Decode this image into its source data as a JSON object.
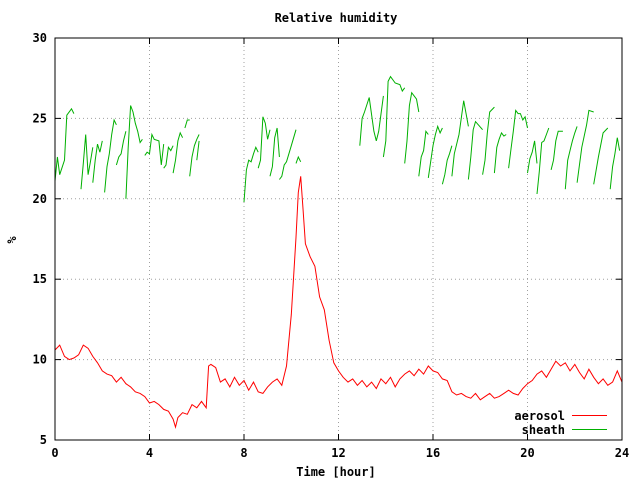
{
  "chart_data": {
    "type": "line",
    "title": "Relative humidity",
    "xlabel": "Time [hour]",
    "ylabel": "%",
    "xlim": [
      0,
      24
    ],
    "ylim": [
      5,
      30
    ],
    "xticks": [
      0,
      4,
      8,
      12,
      16,
      20,
      24
    ],
    "yticks": [
      5,
      10,
      15,
      20,
      25,
      30
    ],
    "grid": true,
    "legend_position": "bottom-right",
    "series": [
      {
        "name": "aerosol",
        "color": "#ff0000",
        "x": [
          0,
          0.2,
          0.4,
          0.6,
          0.8,
          1.0,
          1.2,
          1.4,
          1.6,
          1.8,
          2.0,
          2.2,
          2.4,
          2.6,
          2.8,
          3.0,
          3.2,
          3.4,
          3.6,
          3.8,
          4.0,
          4.2,
          4.4,
          4.6,
          4.8,
          5.0,
          5.1,
          5.2,
          5.4,
          5.6,
          5.8,
          6.0,
          6.2,
          6.4,
          6.5,
          6.6,
          6.8,
          7.0,
          7.2,
          7.4,
          7.6,
          7.8,
          8.0,
          8.2,
          8.4,
          8.6,
          8.8,
          9.0,
          9.2,
          9.4,
          9.6,
          9.8,
          10.0,
          10.2,
          10.3,
          10.4,
          10.5,
          10.6,
          10.8,
          11.0,
          11.2,
          11.4,
          11.6,
          11.8,
          12.0,
          12.2,
          12.4,
          12.6,
          12.8,
          13.0,
          13.2,
          13.4,
          13.6,
          13.8,
          14.0,
          14.2,
          14.4,
          14.6,
          14.8,
          15.0,
          15.2,
          15.4,
          15.6,
          15.8,
          16.0,
          16.2,
          16.4,
          16.6,
          16.8,
          17.0,
          17.2,
          17.4,
          17.6,
          17.8,
          18.0,
          18.2,
          18.4,
          18.6,
          18.8,
          19.0,
          19.2,
          19.4,
          19.6,
          19.8,
          20.0,
          20.2,
          20.4,
          20.6,
          20.8,
          21.0,
          21.2,
          21.4,
          21.6,
          21.8,
          22.0,
          22.2,
          22.4,
          22.6,
          22.8,
          23.0,
          23.2,
          23.4,
          23.6,
          23.8,
          24.0
        ],
        "y": [
          10.6,
          10.9,
          10.2,
          10.0,
          10.1,
          10.3,
          10.9,
          10.7,
          10.2,
          9.8,
          9.3,
          9.1,
          9.0,
          8.6,
          8.9,
          8.5,
          8.3,
          8.0,
          7.9,
          7.7,
          7.3,
          7.4,
          7.2,
          6.9,
          6.8,
          6.3,
          5.8,
          6.4,
          6.7,
          6.6,
          7.2,
          7.0,
          7.4,
          7.0,
          9.6,
          9.7,
          9.5,
          8.6,
          8.8,
          8.3,
          8.9,
          8.4,
          8.7,
          8.1,
          8.6,
          8.0,
          7.9,
          8.3,
          8.6,
          8.8,
          8.4,
          9.6,
          12.8,
          17.6,
          20.4,
          21.4,
          19.3,
          17.2,
          16.4,
          15.8,
          13.9,
          13.1,
          11.2,
          9.8,
          9.3,
          8.9,
          8.6,
          8.8,
          8.4,
          8.7,
          8.3,
          8.6,
          8.2,
          8.8,
          8.5,
          8.9,
          8.3,
          8.8,
          9.1,
          9.3,
          9.0,
          9.4,
          9.1,
          9.6,
          9.3,
          9.2,
          8.8,
          8.7,
          8.0,
          7.8,
          7.9,
          7.7,
          7.6,
          7.9,
          7.5,
          7.7,
          7.9,
          7.6,
          7.7,
          7.9,
          8.1,
          7.9,
          7.8,
          8.2,
          8.5,
          8.7,
          9.1,
          9.3,
          8.9,
          9.4,
          9.9,
          9.6,
          9.8,
          9.3,
          9.7,
          9.2,
          8.8,
          9.4,
          8.9,
          8.5,
          8.8,
          8.4,
          8.6,
          9.3,
          8.6
        ]
      },
      {
        "name": "sheath",
        "color": "#00b000",
        "segments": [
          {
            "x": [
              0.0,
              0.1,
              0.2,
              0.4,
              0.5,
              0.7,
              0.8
            ],
            "y": [
              21.1,
              22.6,
              21.5,
              22.4,
              25.2,
              25.6,
              25.3
            ]
          },
          {
            "x": [
              1.1,
              1.2,
              1.3,
              1.4,
              1.5,
              1.6
            ],
            "y": [
              20.6,
              22.2,
              24.0,
              21.5,
              22.3,
              23.2
            ]
          },
          {
            "x": [
              1.6,
              1.7,
              1.8,
              1.9,
              2.0
            ],
            "y": [
              21.0,
              22.4,
              23.4,
              22.9,
              23.6
            ]
          },
          {
            "x": [
              2.1,
              2.2,
              2.3,
              2.4,
              2.5,
              2.6
            ],
            "y": [
              20.4,
              22.0,
              22.8,
              24.0,
              24.9,
              24.6
            ]
          },
          {
            "x": [
              2.6,
              2.7,
              2.8,
              2.9,
              3.0
            ],
            "y": [
              22.1,
              22.6,
              22.8,
              23.6,
              24.2
            ]
          },
          {
            "x": [
              3.0,
              3.1,
              3.2,
              3.3,
              3.4,
              3.5,
              3.6,
              3.7
            ],
            "y": [
              20.0,
              23.2,
              25.8,
              25.4,
              24.7,
              24.2,
              23.5,
              23.7
            ]
          },
          {
            "x": [
              3.8,
              3.9,
              4.0,
              4.1,
              4.2,
              4.4,
              4.5,
              4.6
            ],
            "y": [
              22.7,
              22.9,
              22.8,
              24.0,
              23.7,
              23.6,
              22.1,
              23.4
            ]
          },
          {
            "x": [
              4.6,
              4.7,
              4.8,
              4.9,
              5.0
            ],
            "y": [
              21.9,
              22.1,
              23.2,
              23.0,
              23.3
            ]
          },
          {
            "x": [
              5.0,
              5.1,
              5.2,
              5.3,
              5.4
            ],
            "y": [
              21.6,
              22.4,
              23.6,
              24.1,
              23.8
            ]
          },
          {
            "x": [
              5.5,
              5.6,
              5.7
            ],
            "y": [
              24.4,
              24.9,
              24.9
            ]
          },
          {
            "x": [
              5.7,
              5.8,
              5.9,
              6.0,
              6.1
            ],
            "y": [
              21.4,
              22.6,
              23.3,
              23.7,
              24.0
            ]
          },
          {
            "x": [
              6.0,
              6.1
            ],
            "y": [
              22.4,
              23.6
            ]
          },
          {
            "x": [
              8.0,
              8.1,
              8.2,
              8.3,
              8.4,
              8.5,
              8.6
            ],
            "y": [
              19.8,
              21.8,
              22.4,
              22.3,
              22.8,
              23.2,
              22.9
            ]
          },
          {
            "x": [
              8.6,
              8.7,
              8.8,
              8.9,
              9.0,
              9.1
            ],
            "y": [
              21.9,
              22.4,
              25.1,
              24.7,
              23.7,
              24.3
            ]
          },
          {
            "x": [
              9.1,
              9.2,
              9.3,
              9.4,
              9.5
            ],
            "y": [
              21.4,
              22.0,
              23.8,
              24.4,
              22.6
            ]
          },
          {
            "x": [
              9.5,
              9.6,
              9.7,
              9.8,
              10.0,
              10.2
            ],
            "y": [
              21.2,
              21.4,
              22.1,
              22.3,
              23.3,
              24.3
            ]
          },
          {
            "x": [
              10.2,
              10.3,
              10.4
            ],
            "y": [
              22.2,
              22.6,
              22.3
            ]
          },
          {
            "x": [
              12.9,
              13.0,
              13.1,
              13.3,
              13.5,
              13.6,
              13.7,
              13.9
            ],
            "y": [
              23.3,
              25.0,
              25.4,
              26.3,
              24.2,
              23.6,
              24.2,
              26.4
            ]
          },
          {
            "x": [
              13.9,
              14.0,
              14.1,
              14.2,
              14.4,
              14.6,
              14.7,
              14.8
            ],
            "y": [
              22.6,
              23.6,
              27.3,
              27.6,
              27.2,
              27.1,
              26.7,
              26.9
            ]
          },
          {
            "x": [
              14.8,
              14.9,
              15.0,
              15.1,
              15.3,
              15.4
            ],
            "y": [
              22.2,
              23.6,
              25.8,
              26.6,
              26.2,
              25.4
            ]
          },
          {
            "x": [
              15.4,
              15.5,
              15.6,
              15.7,
              15.8
            ],
            "y": [
              21.4,
              22.6,
              23.0,
              24.2,
              24.0
            ]
          },
          {
            "x": [
              15.8,
              16.0,
              16.1,
              16.2,
              16.3,
              16.4
            ],
            "y": [
              21.3,
              23.3,
              24.0,
              24.5,
              24.1,
              24.4
            ]
          },
          {
            "x": [
              16.4,
              16.5,
              16.6,
              16.7,
              16.8
            ],
            "y": [
              20.9,
              21.5,
              22.4,
              22.8,
              23.3
            ]
          },
          {
            "x": [
              16.8,
              16.9,
              17.1,
              17.3,
              17.5
            ],
            "y": [
              21.4,
              22.8,
              24.0,
              26.1,
              24.5
            ]
          },
          {
            "x": [
              17.5,
              17.6,
              17.7,
              17.8,
              18.1
            ],
            "y": [
              21.2,
              22.6,
              24.3,
              24.8,
              24.3
            ]
          },
          {
            "x": [
              18.1,
              18.2,
              18.3,
              18.4,
              18.6
            ],
            "y": [
              21.5,
              22.4,
              24.1,
              25.4,
              25.7
            ]
          },
          {
            "x": [
              18.6,
              18.7,
              18.8,
              18.9,
              19.0,
              19.1
            ],
            "y": [
              21.6,
              23.2,
              23.7,
              24.1,
              23.9,
              24.0
            ]
          },
          {
            "x": [
              19.2,
              19.3,
              19.4,
              19.5,
              19.6,
              19.7,
              19.8,
              19.9,
              20.0
            ],
            "y": [
              21.9,
              23.1,
              24.2,
              25.5,
              25.3,
              25.3,
              24.9,
              25.1,
              24.4
            ]
          },
          {
            "x": [
              20.0,
              20.1,
              20.2,
              20.3,
              20.4
            ],
            "y": [
              21.6,
              22.5,
              22.9,
              23.6,
              22.2
            ]
          },
          {
            "x": [
              20.4,
              20.5,
              20.6,
              20.7,
              20.8,
              20.9
            ],
            "y": [
              20.3,
              21.7,
              23.5,
              23.6,
              24.0,
              24.4
            ]
          },
          {
            "x": [
              21.0,
              21.1,
              21.2,
              21.3,
              21.5
            ],
            "y": [
              21.8,
              22.4,
              23.6,
              24.2,
              24.2
            ]
          },
          {
            "x": [
              21.6,
              21.7,
              21.8,
              21.9,
              22.0,
              22.1
            ],
            "y": [
              20.6,
              22.4,
              23.0,
              23.6,
              24.1,
              24.5
            ]
          },
          {
            "x": [
              22.1,
              22.3,
              22.5,
              22.6,
              22.8
            ],
            "y": [
              21.0,
              23.2,
              24.6,
              25.5,
              25.4
            ]
          },
          {
            "x": [
              22.8,
              23.0,
              23.2,
              23.4
            ],
            "y": [
              20.9,
              22.6,
              24.1,
              24.4
            ]
          },
          {
            "x": [
              23.5,
              23.6,
              23.7,
              23.8,
              23.9
            ],
            "y": [
              20.6,
              22.0,
              22.8,
              23.8,
              23.0
            ]
          }
        ]
      }
    ]
  }
}
